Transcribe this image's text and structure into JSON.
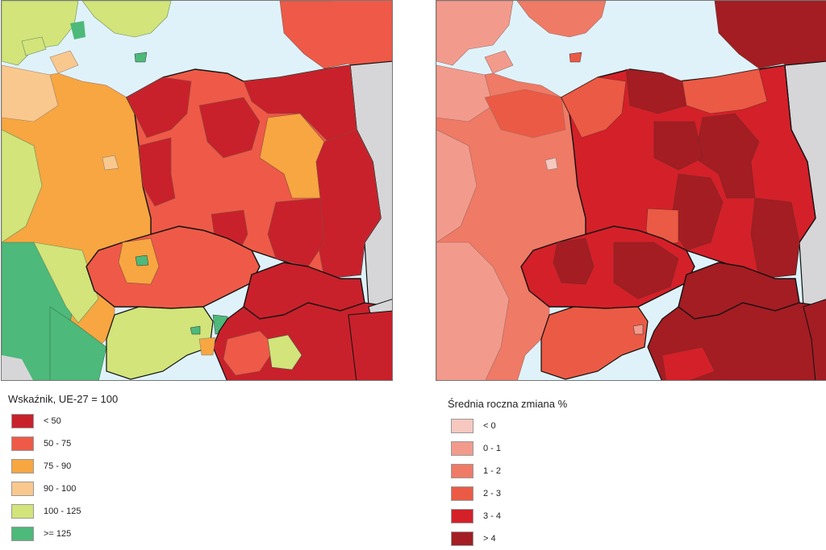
{
  "legend_left": {
    "title": "Wskaźnik, UE-27 = 100",
    "items": [
      {
        "label": "< 50",
        "color": "#c8212b"
      },
      {
        "label": "50 - 75",
        "color": "#ee5a47"
      },
      {
        "label": "75 - 90",
        "color": "#f7a641"
      },
      {
        "label": "90 - 100",
        "color": "#f9c88e"
      },
      {
        "label": "100 - 125",
        "color": "#d2e47a"
      },
      {
        "label": ">= 125",
        "color": "#4db97a"
      }
    ]
  },
  "legend_right": {
    "title": "Średnia roczna zmiana %",
    "items": [
      {
        "label": "< 0",
        "color": "#f6c8bf"
      },
      {
        "label": "0 - 1",
        "color": "#f29b8d"
      },
      {
        "label": "1 - 2",
        "color": "#ef7a66"
      },
      {
        "label": "2 - 3",
        "color": "#eb5a44"
      },
      {
        "label": "3 - 4",
        "color": "#d42029"
      },
      {
        "label": "> 4",
        "color": "#a31d23"
      }
    ]
  },
  "colors": {
    "sea": "#dff2fa",
    "non_eu": "#d6d6d8",
    "border": "#111111",
    "region_line": "#8a5a50"
  }
}
